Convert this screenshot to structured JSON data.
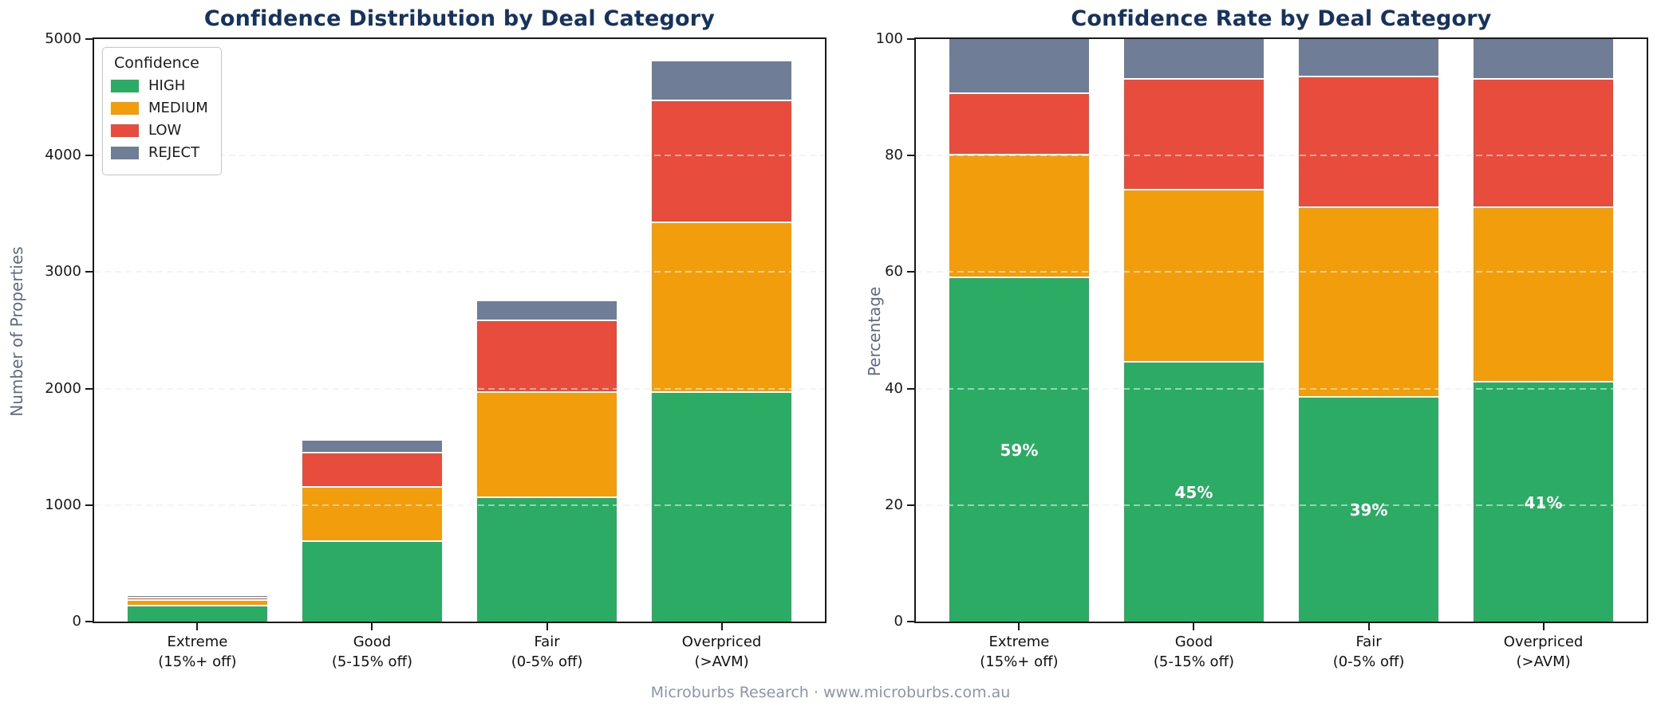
{
  "figure": {
    "footer": "Microburbs Research · www.microburbs.com.au",
    "colors": {
      "high": "#2BAB63",
      "medium": "#F29E0C",
      "low": "#E74C3C",
      "reject": "#6F7E96",
      "title": "#16335E",
      "axis_label": "#5D6B83",
      "tick_label": "#1A1A1A",
      "footer_text": "#8A96A8",
      "bar_label": "#FFFFFF"
    },
    "legend": {
      "title": "Confidence",
      "items": [
        {
          "label": "HIGH",
          "color_key": "high"
        },
        {
          "label": "MEDIUM",
          "color_key": "medium"
        },
        {
          "label": "LOW",
          "color_key": "low"
        },
        {
          "label": "REJECT",
          "color_key": "reject"
        }
      ]
    }
  },
  "chart_data": [
    {
      "type": "bar",
      "stacked": true,
      "title": "Confidence Distribution by Deal Category",
      "xlabel": "",
      "ylabel": "Number of Properties",
      "ylim": [
        0,
        5000
      ],
      "yticks": [
        0,
        1000,
        2000,
        3000,
        4000,
        5000
      ],
      "grid": true,
      "legend_position": "upper left",
      "categories": [
        [
          "Extreme",
          "(15%+ off)"
        ],
        [
          "Good",
          "(5-15% off)"
        ],
        [
          "Fair",
          "(0-5% off)"
        ],
        [
          "Overpriced",
          "(>AVM)"
        ]
      ],
      "series": [
        {
          "name": "HIGH",
          "color_key": "high",
          "values": [
            130,
            685,
            1060,
            1960
          ]
        },
        {
          "name": "MEDIUM",
          "color_key": "medium",
          "values": [
            46,
            465,
            900,
            1460
          ]
        },
        {
          "name": "LOW",
          "color_key": "low",
          "values": [
            23,
            295,
            620,
            1050
          ]
        },
        {
          "name": "REJECT",
          "color_key": "reject",
          "values": [
            21,
            105,
            170,
            340
          ]
        }
      ]
    },
    {
      "type": "bar",
      "stacked": true,
      "title": "Confidence Rate by Deal Category",
      "xlabel": "",
      "ylabel": "Percentage",
      "ylim": [
        0,
        100
      ],
      "yticks": [
        0,
        20,
        40,
        60,
        80,
        100
      ],
      "grid": true,
      "categories": [
        [
          "Extreme",
          "(15%+ off)"
        ],
        [
          "Good",
          "(5-15% off)"
        ],
        [
          "Fair",
          "(0-5% off)"
        ],
        [
          "Overpriced",
          "(>AVM)"
        ]
      ],
      "series": [
        {
          "name": "HIGH",
          "color_key": "high",
          "values": [
            59,
            44.5,
            38.5,
            41
          ]
        },
        {
          "name": "MEDIUM",
          "color_key": "medium",
          "values": [
            21,
            29.5,
            32.5,
            30
          ]
        },
        {
          "name": "LOW",
          "color_key": "low",
          "values": [
            10.5,
            19,
            22.5,
            22
          ]
        },
        {
          "name": "REJECT",
          "color_key": "reject",
          "values": [
            9.5,
            7,
            6.5,
            7
          ]
        }
      ],
      "bar_labels": [
        "59%",
        "45%",
        "39%",
        "41%"
      ]
    }
  ]
}
